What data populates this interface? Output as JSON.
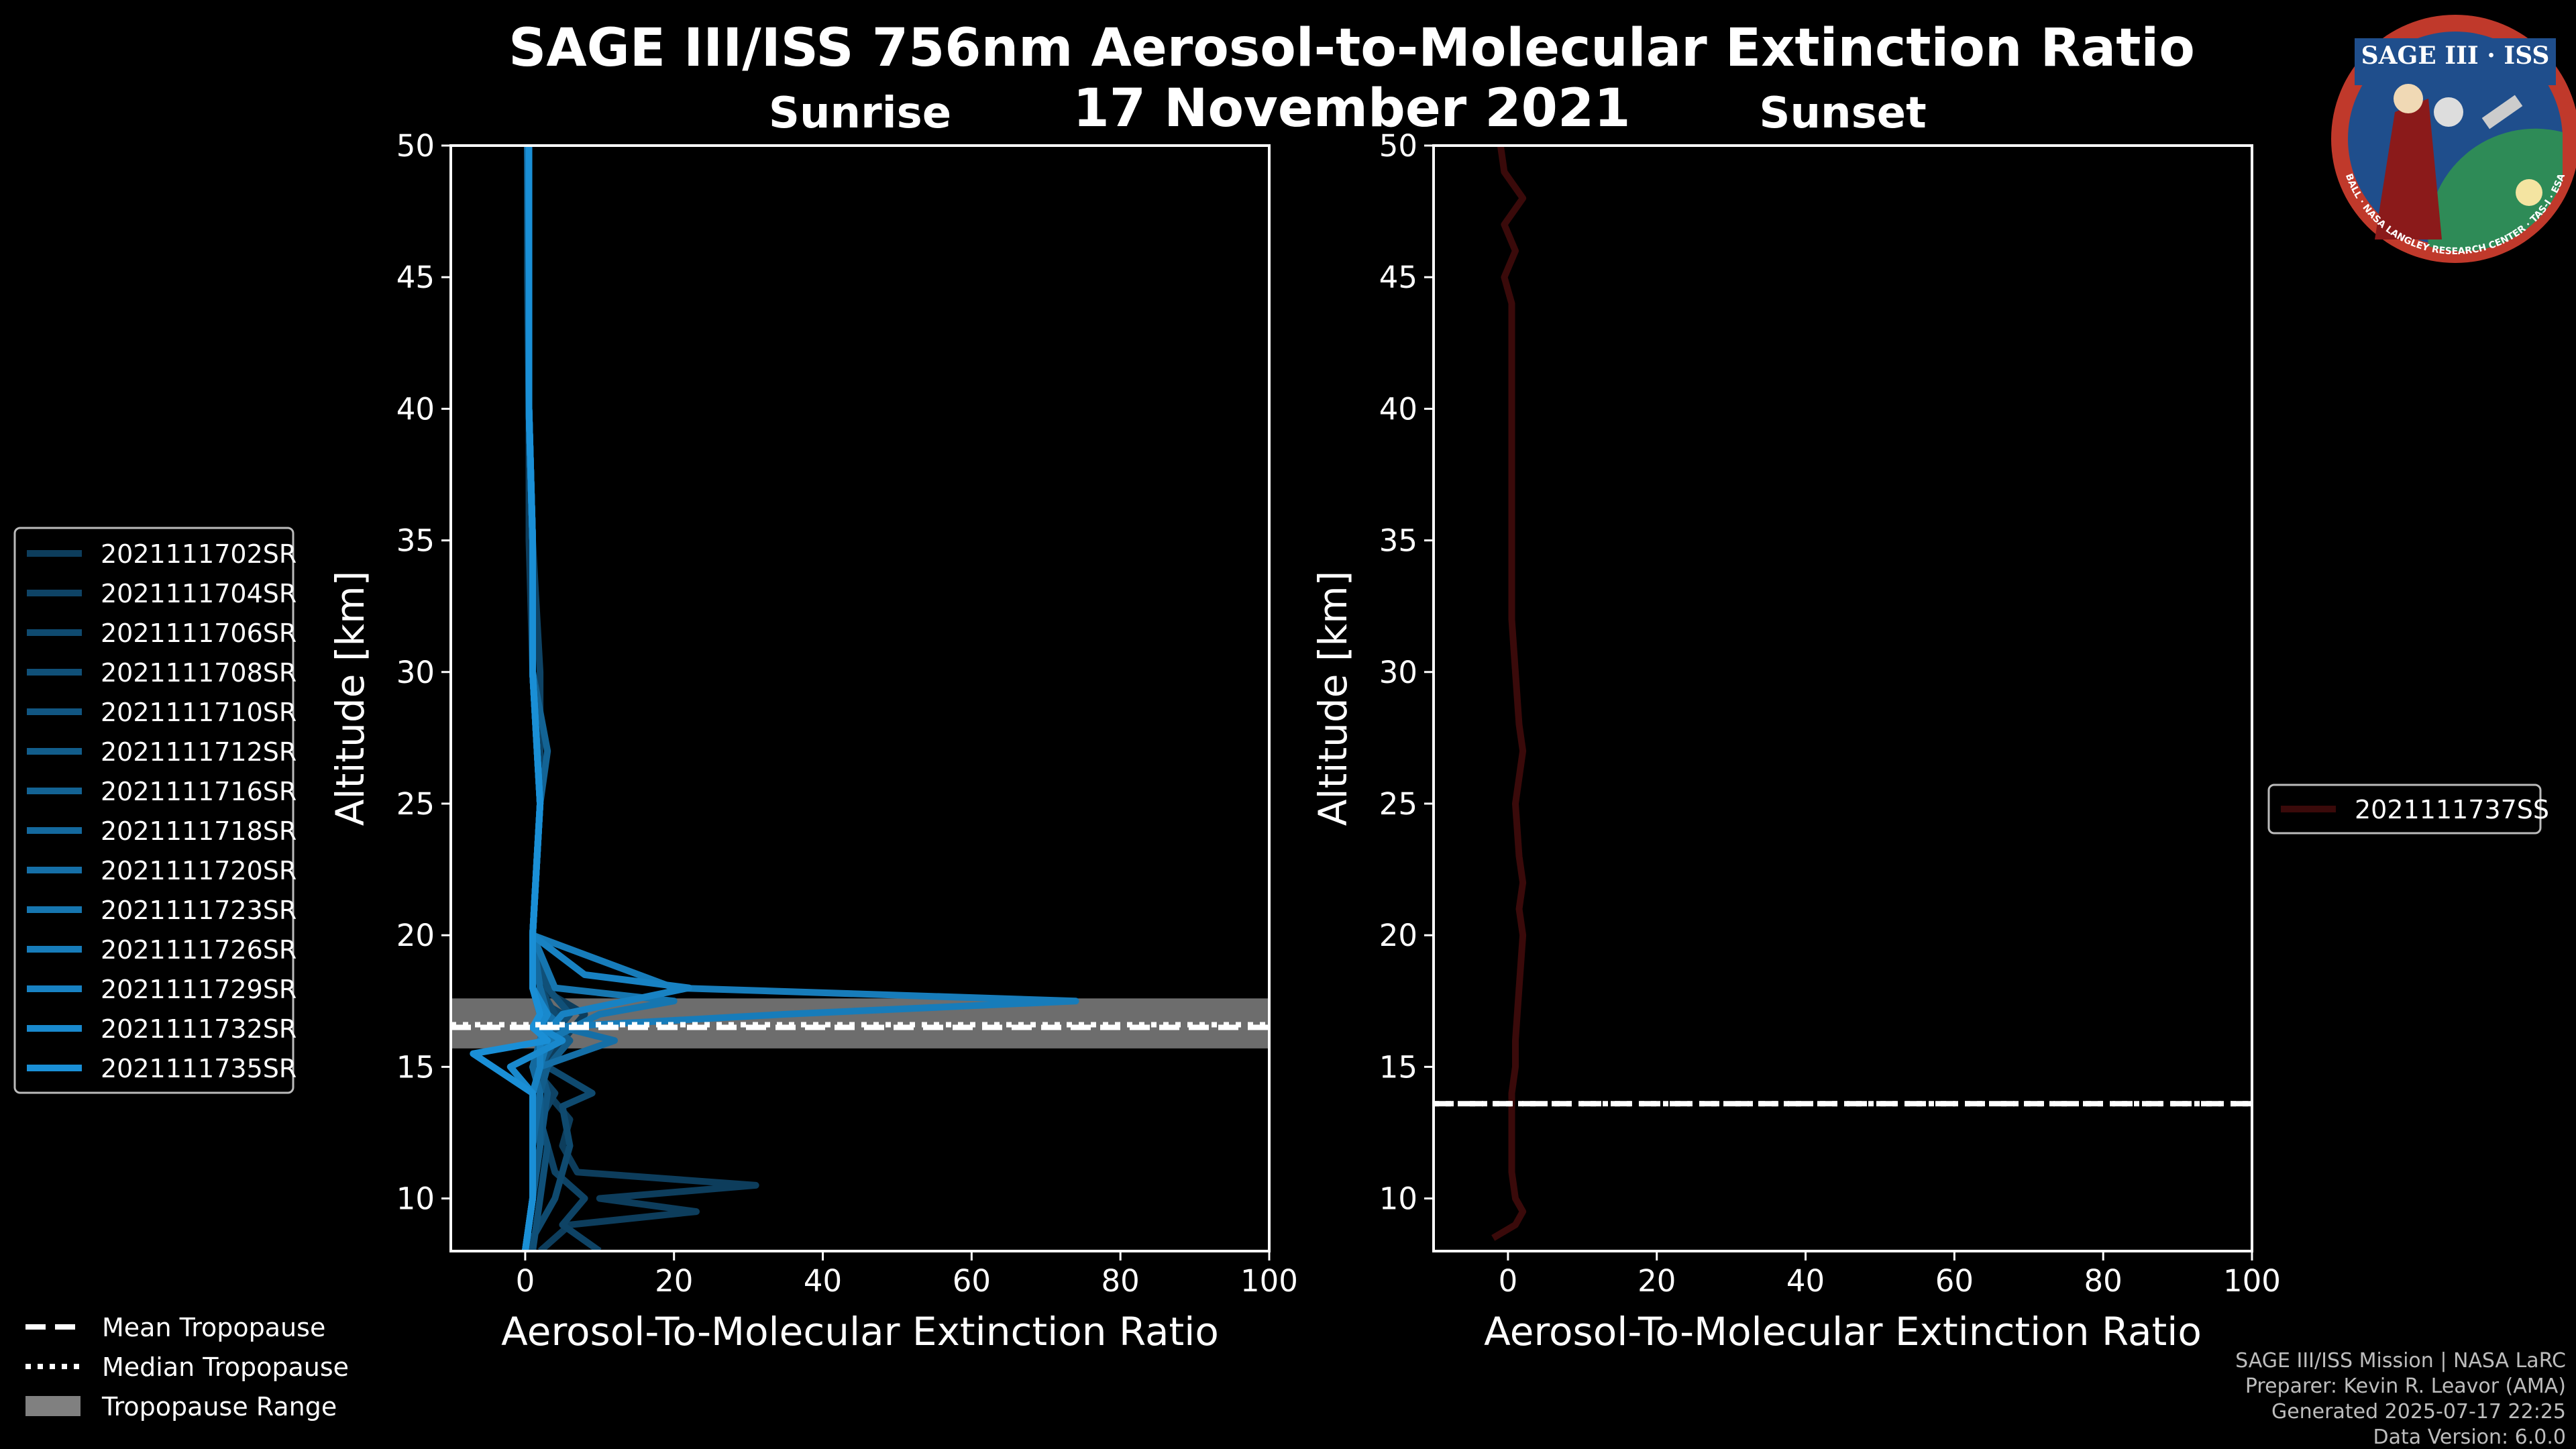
{
  "figure": {
    "title_line1": "SAGE III/ISS 756nm Aerosol-to-Molecular Extinction Ratio",
    "title_line2": "17 November 2021",
    "credits": [
      "SAGE III/ISS Mission | NASA LaRC",
      "Preparer: Kevin R. Leavor (AMA)",
      "Generated 2025-07-17 22:25",
      "Data Version: 6.0.0"
    ],
    "logo": {
      "icon": "sage-iii-iss-mission-patch",
      "text": "SAGE III · ISS",
      "ring_text": "BALL · NASA LANGLEY RESEARCH CENTER · TAS-I · ESA",
      "colors": {
        "ring": "#c0392b",
        "sky": "#1f4e8c",
        "globe": "#2e8b57"
      }
    }
  },
  "legend_bottom": {
    "items": [
      {
        "label": "Mean Tropopause",
        "style": "dashed"
      },
      {
        "label": "Median Tropopause",
        "style": "dotted"
      },
      {
        "label": "Tropopause Range",
        "style": "patch"
      }
    ]
  },
  "chart_data": [
    {
      "type": "line",
      "panel": "sunrise",
      "title": "Sunrise",
      "xlabel": "Aerosol-To-Molecular Extinction Ratio",
      "ylabel": "Altitude [km]",
      "xlim": [
        -10,
        100
      ],
      "ylim": [
        8,
        50
      ],
      "xticks": [
        0,
        20,
        40,
        60,
        80,
        100
      ],
      "yticks": [
        10,
        15,
        20,
        25,
        30,
        35,
        40,
        45,
        50
      ],
      "tropopause": {
        "mean": 16.5,
        "median": 16.6,
        "range": [
          15.7,
          17.6
        ]
      },
      "colors": {
        "range_fill": "#808080",
        "series_start": "#0d3d5c",
        "series_end": "#1a8fd6"
      },
      "legend": [
        "2021111702SR",
        "2021111704SR",
        "2021111706SR",
        "2021111708SR",
        "2021111710SR",
        "2021111712SR",
        "2021111716SR",
        "2021111718SR",
        "2021111720SR",
        "2021111723SR",
        "2021111726SR",
        "2021111729SR",
        "2021111732SR",
        "2021111735SR"
      ],
      "series": [
        {
          "name": "2021111702SR",
          "y": [
            8,
            9,
            9.5,
            10,
            10.5,
            11,
            12,
            13,
            14,
            15,
            16,
            17,
            17.5,
            18,
            20,
            25,
            30,
            35,
            40,
            45,
            50
          ],
          "x": [
            2,
            6,
            23,
            10,
            31,
            7,
            5,
            6,
            3,
            2,
            5,
            8,
            5,
            2,
            1,
            2,
            1,
            0.5,
            0.5,
            0.5,
            0.5
          ]
        },
        {
          "name": "2021111704SR",
          "y": [
            8,
            9,
            10,
            11,
            12,
            13,
            14,
            15,
            16,
            17,
            17.5,
            18,
            20,
            25,
            30,
            35,
            40,
            45,
            50
          ],
          "x": [
            10,
            5,
            8,
            4,
            3,
            2,
            4,
            1,
            3,
            5,
            2,
            1,
            1,
            2,
            2,
            1,
            0.5,
            0.3,
            0.3
          ]
        },
        {
          "name": "2021111706SR",
          "y": [
            8,
            10,
            12,
            13.5,
            14,
            15,
            16,
            17,
            18,
            20,
            25,
            30,
            35,
            40,
            45,
            50
          ],
          "x": [
            0,
            4,
            6,
            5,
            9,
            3,
            2,
            4,
            2,
            1,
            2,
            1,
            1,
            0.5,
            0.5,
            0.5
          ]
        },
        {
          "name": "2021111708SR",
          "y": [
            8,
            10,
            12,
            14,
            15,
            16,
            17,
            18,
            20,
            25,
            30,
            35,
            40,
            45,
            50
          ],
          "x": [
            1,
            2,
            3,
            1,
            2,
            3,
            6,
            3,
            1,
            2,
            1,
            1,
            0.5,
            0.5,
            0.3
          ]
        },
        {
          "name": "2021111710SR",
          "y": [
            8,
            10,
            12,
            14,
            15,
            16,
            17,
            18,
            20,
            25,
            30,
            35,
            40,
            45,
            50
          ],
          "x": [
            0,
            1,
            2,
            3,
            2,
            4,
            3,
            2,
            1,
            2,
            1,
            1,
            0.5,
            0.5,
            0.5
          ]
        },
        {
          "name": "2021111712SR",
          "y": [
            8,
            10,
            12,
            14,
            15,
            16,
            16.5,
            17,
            18,
            20,
            25,
            30,
            35,
            40,
            45,
            50
          ],
          "x": [
            0,
            1,
            2,
            2,
            3,
            6,
            4,
            2,
            1,
            1,
            2,
            1,
            1,
            0.5,
            0.5,
            0.5
          ]
        },
        {
          "name": "2021111716SR",
          "y": [
            8,
            10,
            12,
            14,
            15,
            16,
            17,
            18,
            20,
            25,
            27,
            30,
            35,
            40,
            45,
            50
          ],
          "x": [
            0,
            1,
            1,
            2,
            1,
            3,
            2,
            1,
            1,
            2,
            3,
            1,
            1,
            0.5,
            0.5,
            0.5
          ]
        },
        {
          "name": "2021111718SR",
          "y": [
            8,
            10,
            12,
            14,
            15,
            16,
            17,
            18,
            20,
            25,
            30,
            35,
            40,
            45,
            50
          ],
          "x": [
            0,
            1,
            1,
            2,
            1,
            2,
            3,
            2,
            1,
            2,
            1,
            1,
            0.5,
            0.5,
            0.5
          ]
        },
        {
          "name": "2021111720SR",
          "y": [
            8,
            10,
            12,
            14,
            15,
            16,
            16.5,
            17,
            18,
            20,
            25,
            30,
            35,
            40,
            45,
            50
          ],
          "x": [
            0,
            1,
            1,
            1,
            2,
            12,
            5,
            3,
            1,
            1,
            2,
            1,
            1,
            0.5,
            0.5,
            0.3
          ]
        },
        {
          "name": "2021111723SR",
          "y": [
            8,
            10,
            12,
            14,
            15,
            16,
            17,
            17.5,
            18,
            20,
            25,
            30,
            35,
            40,
            45,
            50
          ],
          "x": [
            0,
            1,
            1,
            1,
            2,
            3,
            10,
            20,
            4,
            1,
            2,
            1,
            1,
            0.5,
            0.5,
            0.5
          ]
        },
        {
          "name": "2021111726SR",
          "y": [
            8,
            10,
            12,
            14,
            15,
            16,
            16.5,
            17,
            17.5,
            18,
            20,
            25,
            30,
            35,
            40,
            45,
            50
          ],
          "x": [
            0,
            1,
            1,
            1,
            2,
            2,
            3,
            35,
            74,
            20,
            1,
            2,
            1,
            1,
            0.5,
            0.5,
            0.5
          ]
        },
        {
          "name": "2021111729SR",
          "y": [
            8,
            10,
            12,
            14,
            15,
            16,
            17,
            18,
            18.5,
            20,
            25,
            30,
            35,
            40,
            45,
            50
          ],
          "x": [
            0,
            1,
            1,
            1,
            2,
            2,
            5,
            22,
            8,
            1,
            2,
            1,
            1,
            0.5,
            0.5,
            0.5
          ]
        },
        {
          "name": "2021111732SR",
          "y": [
            8,
            10,
            12,
            14,
            15,
            16,
            16.5,
            17,
            18,
            20,
            25,
            30,
            35,
            40,
            45,
            50
          ],
          "x": [
            0,
            1,
            1,
            1,
            -2,
            5,
            2,
            3,
            1,
            1,
            2,
            1,
            1,
            0.5,
            0.5,
            0.5
          ]
        },
        {
          "name": "2021111735SR",
          "y": [
            8,
            10,
            12,
            14,
            15.5,
            16,
            16.5,
            17,
            18,
            20,
            25,
            30,
            35,
            40,
            45,
            50
          ],
          "x": [
            0,
            1,
            1,
            1,
            -7,
            3,
            1,
            2,
            1,
            1,
            2,
            1,
            1,
            0.5,
            0.5,
            0.5
          ]
        }
      ]
    },
    {
      "type": "line",
      "panel": "sunset",
      "title": "Sunset",
      "xlabel": "Aerosol-To-Molecular Extinction Ratio",
      "ylabel": "Altitude [km]",
      "xlim": [
        -10,
        100
      ],
      "ylim": [
        8,
        50
      ],
      "xticks": [
        0,
        20,
        40,
        60,
        80,
        100
      ],
      "yticks": [
        10,
        15,
        20,
        25,
        30,
        35,
        40,
        45,
        50
      ],
      "tropopause": {
        "mean": 13.6,
        "median": 13.6,
        "range": [
          13.6,
          13.6
        ]
      },
      "colors": {
        "series": "#3a0a0a"
      },
      "legend": [
        "2021111737SS"
      ],
      "series": [
        {
          "name": "2021111737SS",
          "y": [
            8.5,
            9,
            9.5,
            10,
            11,
            12,
            13,
            14,
            15,
            16,
            18,
            20,
            21,
            22,
            23,
            25,
            27,
            28,
            30,
            32,
            34,
            36,
            38,
            40,
            42,
            44,
            45,
            46,
            47,
            48,
            49,
            50
          ],
          "x": [
            -2,
            1,
            2,
            1,
            0.5,
            0.5,
            0.5,
            0.5,
            1,
            1,
            1.5,
            2,
            1.5,
            2,
            1.5,
            1,
            2,
            1.5,
            1,
            0.5,
            0.5,
            0.5,
            0.5,
            0.5,
            0.5,
            0.5,
            -0.5,
            1,
            -0.5,
            2,
            -0.5,
            -1
          ]
        }
      ]
    }
  ]
}
